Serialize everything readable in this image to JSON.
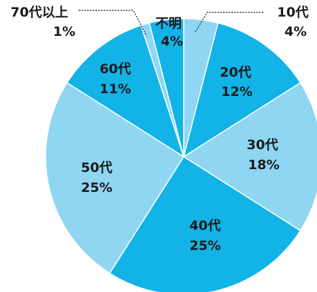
{
  "chart_data": {
    "type": "pie",
    "title": "",
    "start_angle_deg": 0,
    "direction": "clockwise",
    "colors": {
      "dark": "#12b3e6",
      "light": "#8fd6f3",
      "stroke": "#ffffff"
    },
    "slices": [
      {
        "label": "10代",
        "percent_label": "4%",
        "value": 4,
        "shade": "light"
      },
      {
        "label": "20代",
        "percent_label": "12%",
        "value": 12,
        "shade": "dark"
      },
      {
        "label": "30代",
        "percent_label": "18%",
        "value": 18,
        "shade": "light"
      },
      {
        "label": "40代",
        "percent_label": "25%",
        "value": 25,
        "shade": "dark"
      },
      {
        "label": "50代",
        "percent_label": "25%",
        "value": 25,
        "shade": "light"
      },
      {
        "label": "60代",
        "percent_label": "11%",
        "value": 11,
        "shade": "dark"
      },
      {
        "label": "70代以上",
        "percent_label": "1%",
        "value": 1,
        "shade": "light"
      },
      {
        "label": "不明",
        "percent_label": "4%",
        "value": 4,
        "shade": "dark"
      }
    ]
  }
}
